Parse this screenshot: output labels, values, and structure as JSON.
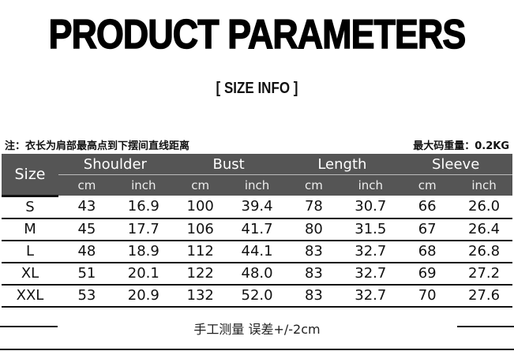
{
  "title": "PRODUCT PARAMETERS",
  "subtitle": "[ SIZE  INFO ]",
  "note": "注：衣长为肩部最高点到下摆间直线距离",
  "max_weight": "最大码重量：0.2KG",
  "table": {
    "size_header": "Size",
    "groups": [
      "Shoulder",
      "Bust",
      "Length",
      "Sleeve"
    ],
    "units": [
      "cm",
      "inch",
      "cm",
      "inch",
      "cm",
      "inch",
      "cm",
      "inch"
    ],
    "rows": [
      [
        "S",
        "43",
        "16.9",
        "100",
        "39.4",
        "78",
        "30.7",
        "66",
        "26.0"
      ],
      [
        "M",
        "45",
        "17.7",
        "106",
        "41.7",
        "80",
        "31.5",
        "67",
        "26.4"
      ],
      [
        "L",
        "48",
        "18.9",
        "112",
        "44.1",
        "83",
        "32.7",
        "68",
        "26.8"
      ],
      [
        "XL",
        "51",
        "20.1",
        "122",
        "48.0",
        "83",
        "32.7",
        "69",
        "27.2"
      ],
      [
        "XXL",
        "53",
        "20.9",
        "132",
        "52.0",
        "83",
        "32.7",
        "70",
        "27.6"
      ]
    ]
  },
  "footer": "手工测量 误差+/-2cm",
  "colors": {
    "header_bg": "#555555",
    "text": "#111111"
  }
}
